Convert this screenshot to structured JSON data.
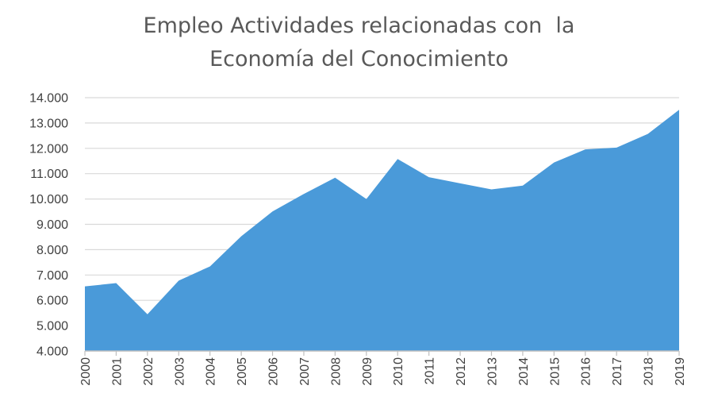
{
  "chart_data": {
    "type": "area",
    "title": [
      "Empleo Actividades relacionadas con  la",
      "Economía del Conocimiento"
    ],
    "x": [
      "2000",
      "2001",
      "2002",
      "2003",
      "2004",
      "2005",
      "2006",
      "2007",
      "2008",
      "2009",
      "2010",
      "2011",
      "2012",
      "2013",
      "2014",
      "2015",
      "2016",
      "2017",
      "2018",
      "2019"
    ],
    "series": [
      {
        "values": [
          6550,
          6680,
          5450,
          6780,
          7340,
          8530,
          9510,
          10200,
          10840,
          10000,
          11580,
          10860,
          10620,
          10380,
          10530,
          11440,
          11960,
          12030,
          12570,
          13520
        ]
      }
    ],
    "ylim": [
      4000,
      14000
    ],
    "y_ticks": [
      "4.000",
      "5.000",
      "6.000",
      "7.000",
      "8.000",
      "9.000",
      "10.000",
      "11.000",
      "12.000",
      "13.000",
      "14.000"
    ],
    "xlabel": "",
    "ylabel": "",
    "grid": true,
    "legend": "none",
    "colors": {
      "area": "#4a9ad9",
      "grid": "#d9d9d9",
      "axis": "#bfbfbf",
      "text": "#404040",
      "title": "#595959"
    }
  }
}
